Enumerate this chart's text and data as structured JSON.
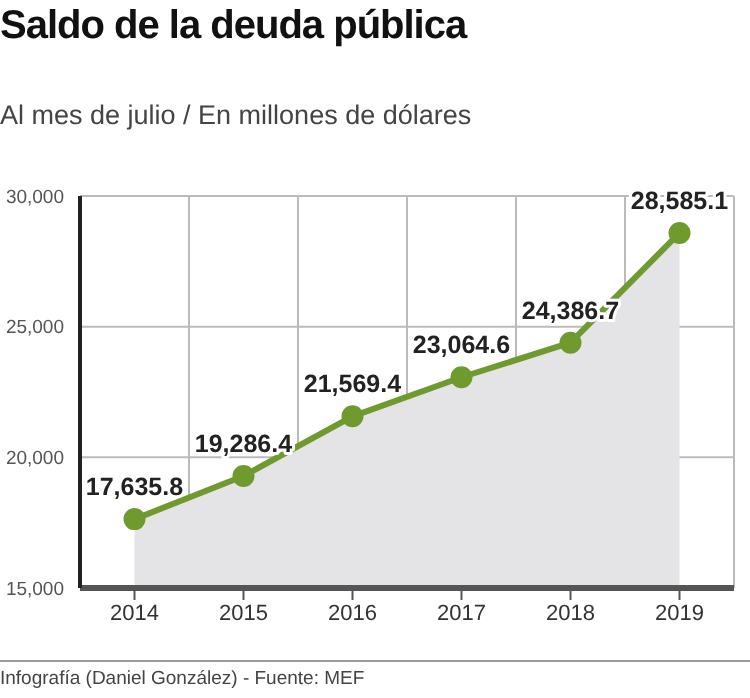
{
  "chart_data": {
    "type": "area",
    "title": "Saldo de la deuda pública",
    "subtitle": "Al mes de julio / En millones de dólares",
    "categories": [
      "2014",
      "2015",
      "2016",
      "2017",
      "2018",
      "2019"
    ],
    "series": [
      {
        "color": "#6e9a2e",
        "values": [
          17635.8,
          19286.4,
          21569.4,
          23064.6,
          24386.7,
          28585.1
        ]
      }
    ],
    "value_labels": [
      "17,635.8",
      "19,286.4",
      "21,569.4",
      "23,064.6",
      "24,386.7",
      "28,585.1"
    ],
    "ylim": [
      15000,
      30000
    ],
    "yticks": [
      {
        "value": 15000,
        "label": "15,000"
      },
      {
        "value": 20000,
        "label": "20,000"
      },
      {
        "value": 25000,
        "label": "25,000"
      },
      {
        "value": 30000,
        "label": "30,000"
      }
    ],
    "grid": true,
    "marker": "circle",
    "annotations": [
      "Infografía (Daniel González) - Fuente: MEF"
    ]
  }
}
